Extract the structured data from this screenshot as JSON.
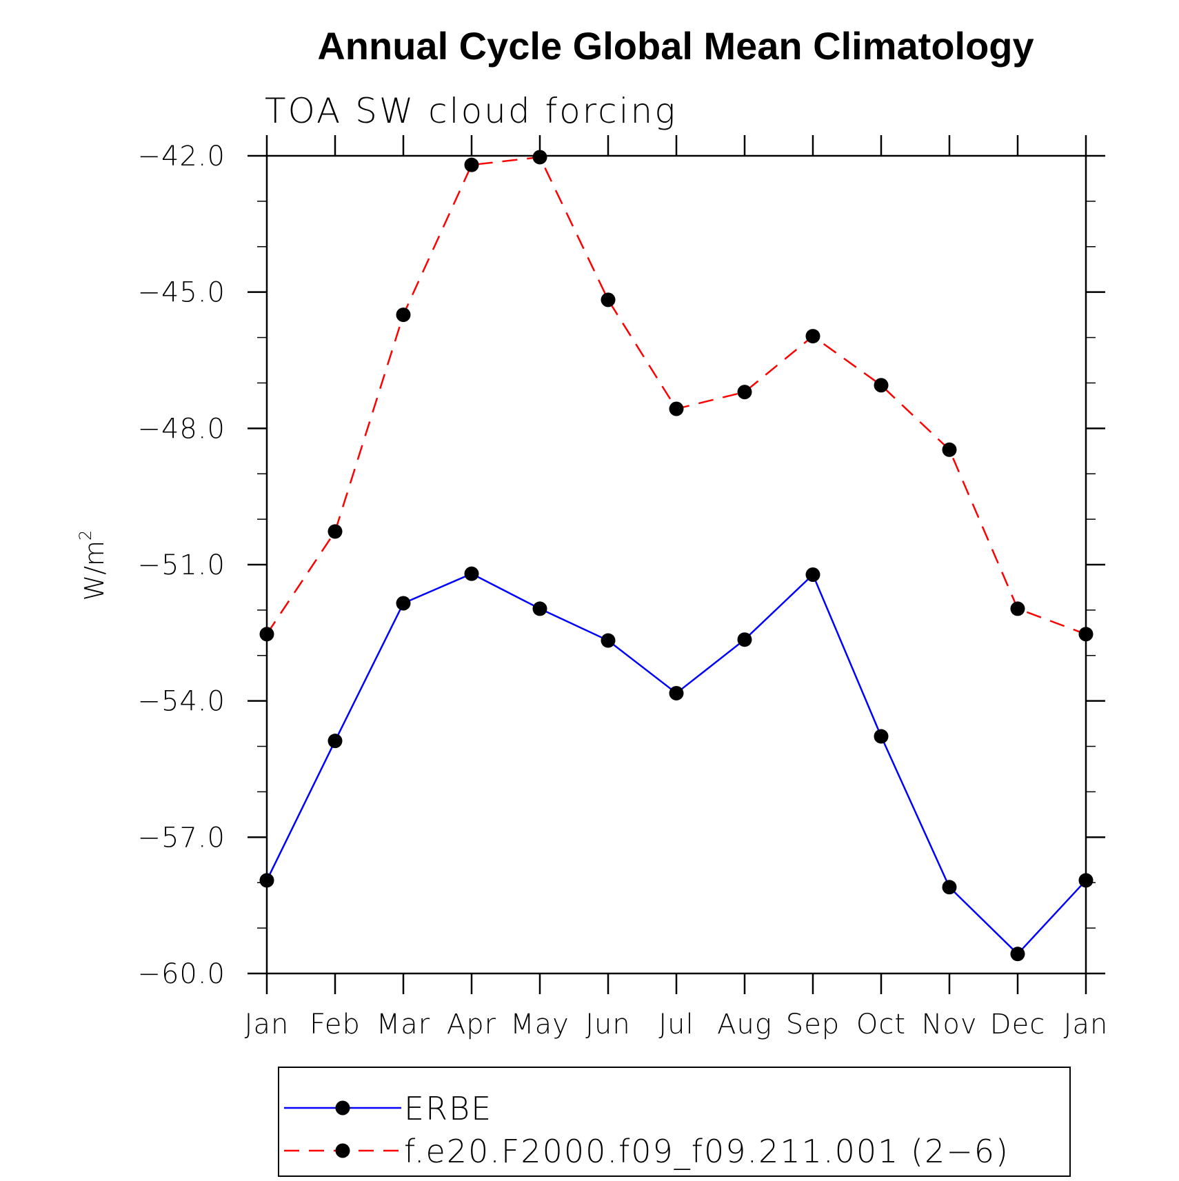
{
  "chart_data": {
    "type": "line",
    "title": "Annual Cycle Global Mean Climatology",
    "subtitle": "TOA SW cloud forcing",
    "ylabel_base": "W/m",
    "ylabel_sup": "2",
    "ylim": [
      -60.0,
      -42.0
    ],
    "yticks": [
      -42.0,
      -45.0,
      -48.0,
      -51.0,
      -54.0,
      -57.0,
      -60.0
    ],
    "ytick_labels": [
      "−42.0",
      "−45.0",
      "−48.0",
      "−51.0",
      "−54.0",
      "−57.0",
      "−60.0"
    ],
    "categories": [
      "Jan",
      "Feb",
      "Mar",
      "Apr",
      "May",
      "Jun",
      "Jul",
      "Aug",
      "Sep",
      "Oct",
      "Nov",
      "Dec",
      "Jan"
    ],
    "grid": false,
    "legend_position": "bottom",
    "series": [
      {
        "name": "ERBE",
        "color": "#0000ff",
        "style": "solid",
        "marker": "filled-circle",
        "values": [
          -57.95,
          -54.88,
          -51.85,
          -51.2,
          -51.97,
          -52.67,
          -53.83,
          -52.65,
          -51.22,
          -54.78,
          -58.1,
          -59.57,
          -57.95
        ]
      },
      {
        "name": "f.e20.F2000.f09_f09.211.001 (2−6)",
        "color": "#ff0000",
        "style": "dashed",
        "marker": "filled-circle",
        "values": [
          -52.53,
          -50.27,
          -45.5,
          -42.2,
          -42.03,
          -45.17,
          -47.57,
          -47.2,
          -45.97,
          -47.05,
          -48.47,
          -51.97,
          -52.53
        ]
      }
    ]
  }
}
